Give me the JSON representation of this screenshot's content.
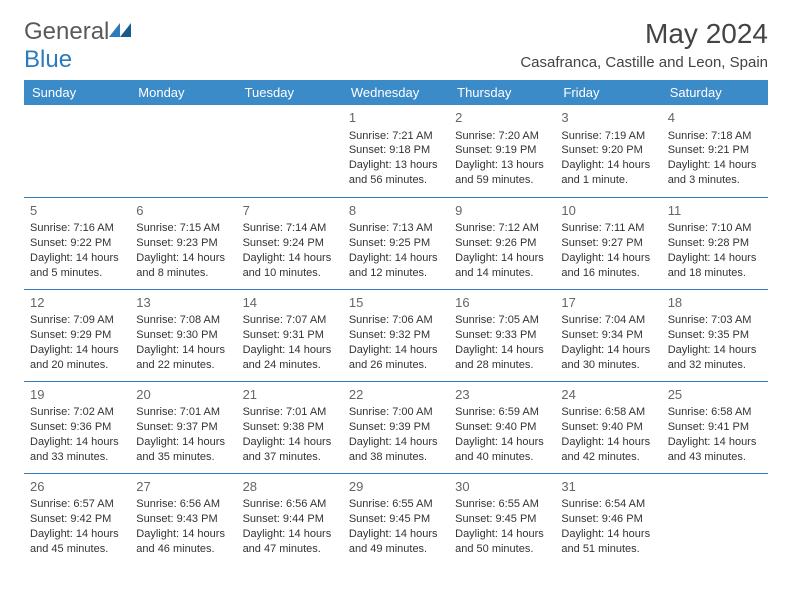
{
  "brand": {
    "name_part1": "General",
    "name_part2": "Blue",
    "accent_color": "#2b7bbd",
    "text_color": "#5a5a5a"
  },
  "title": "May 2024",
  "location": "Casafranca, Castille and Leon, Spain",
  "header_bg": "#3b8bc8",
  "header_fg": "#ffffff",
  "border_color": "#2b7bbd",
  "body_text_color": "#333333",
  "days": [
    "Sunday",
    "Monday",
    "Tuesday",
    "Wednesday",
    "Thursday",
    "Friday",
    "Saturday"
  ],
  "weeks": [
    [
      null,
      null,
      null,
      {
        "n": "1",
        "sr": "Sunrise: 7:21 AM",
        "ss": "Sunset: 9:18 PM",
        "dl": "Daylight: 13 hours and 56 minutes."
      },
      {
        "n": "2",
        "sr": "Sunrise: 7:20 AM",
        "ss": "Sunset: 9:19 PM",
        "dl": "Daylight: 13 hours and 59 minutes."
      },
      {
        "n": "3",
        "sr": "Sunrise: 7:19 AM",
        "ss": "Sunset: 9:20 PM",
        "dl": "Daylight: 14 hours and 1 minute."
      },
      {
        "n": "4",
        "sr": "Sunrise: 7:18 AM",
        "ss": "Sunset: 9:21 PM",
        "dl": "Daylight: 14 hours and 3 minutes."
      }
    ],
    [
      {
        "n": "5",
        "sr": "Sunrise: 7:16 AM",
        "ss": "Sunset: 9:22 PM",
        "dl": "Daylight: 14 hours and 5 minutes."
      },
      {
        "n": "6",
        "sr": "Sunrise: 7:15 AM",
        "ss": "Sunset: 9:23 PM",
        "dl": "Daylight: 14 hours and 8 minutes."
      },
      {
        "n": "7",
        "sr": "Sunrise: 7:14 AM",
        "ss": "Sunset: 9:24 PM",
        "dl": "Daylight: 14 hours and 10 minutes."
      },
      {
        "n": "8",
        "sr": "Sunrise: 7:13 AM",
        "ss": "Sunset: 9:25 PM",
        "dl": "Daylight: 14 hours and 12 minutes."
      },
      {
        "n": "9",
        "sr": "Sunrise: 7:12 AM",
        "ss": "Sunset: 9:26 PM",
        "dl": "Daylight: 14 hours and 14 minutes."
      },
      {
        "n": "10",
        "sr": "Sunrise: 7:11 AM",
        "ss": "Sunset: 9:27 PM",
        "dl": "Daylight: 14 hours and 16 minutes."
      },
      {
        "n": "11",
        "sr": "Sunrise: 7:10 AM",
        "ss": "Sunset: 9:28 PM",
        "dl": "Daylight: 14 hours and 18 minutes."
      }
    ],
    [
      {
        "n": "12",
        "sr": "Sunrise: 7:09 AM",
        "ss": "Sunset: 9:29 PM",
        "dl": "Daylight: 14 hours and 20 minutes."
      },
      {
        "n": "13",
        "sr": "Sunrise: 7:08 AM",
        "ss": "Sunset: 9:30 PM",
        "dl": "Daylight: 14 hours and 22 minutes."
      },
      {
        "n": "14",
        "sr": "Sunrise: 7:07 AM",
        "ss": "Sunset: 9:31 PM",
        "dl": "Daylight: 14 hours and 24 minutes."
      },
      {
        "n": "15",
        "sr": "Sunrise: 7:06 AM",
        "ss": "Sunset: 9:32 PM",
        "dl": "Daylight: 14 hours and 26 minutes."
      },
      {
        "n": "16",
        "sr": "Sunrise: 7:05 AM",
        "ss": "Sunset: 9:33 PM",
        "dl": "Daylight: 14 hours and 28 minutes."
      },
      {
        "n": "17",
        "sr": "Sunrise: 7:04 AM",
        "ss": "Sunset: 9:34 PM",
        "dl": "Daylight: 14 hours and 30 minutes."
      },
      {
        "n": "18",
        "sr": "Sunrise: 7:03 AM",
        "ss": "Sunset: 9:35 PM",
        "dl": "Daylight: 14 hours and 32 minutes."
      }
    ],
    [
      {
        "n": "19",
        "sr": "Sunrise: 7:02 AM",
        "ss": "Sunset: 9:36 PM",
        "dl": "Daylight: 14 hours and 33 minutes."
      },
      {
        "n": "20",
        "sr": "Sunrise: 7:01 AM",
        "ss": "Sunset: 9:37 PM",
        "dl": "Daylight: 14 hours and 35 minutes."
      },
      {
        "n": "21",
        "sr": "Sunrise: 7:01 AM",
        "ss": "Sunset: 9:38 PM",
        "dl": "Daylight: 14 hours and 37 minutes."
      },
      {
        "n": "22",
        "sr": "Sunrise: 7:00 AM",
        "ss": "Sunset: 9:39 PM",
        "dl": "Daylight: 14 hours and 38 minutes."
      },
      {
        "n": "23",
        "sr": "Sunrise: 6:59 AM",
        "ss": "Sunset: 9:40 PM",
        "dl": "Daylight: 14 hours and 40 minutes."
      },
      {
        "n": "24",
        "sr": "Sunrise: 6:58 AM",
        "ss": "Sunset: 9:40 PM",
        "dl": "Daylight: 14 hours and 42 minutes."
      },
      {
        "n": "25",
        "sr": "Sunrise: 6:58 AM",
        "ss": "Sunset: 9:41 PM",
        "dl": "Daylight: 14 hours and 43 minutes."
      }
    ],
    [
      {
        "n": "26",
        "sr": "Sunrise: 6:57 AM",
        "ss": "Sunset: 9:42 PM",
        "dl": "Daylight: 14 hours and 45 minutes."
      },
      {
        "n": "27",
        "sr": "Sunrise: 6:56 AM",
        "ss": "Sunset: 9:43 PM",
        "dl": "Daylight: 14 hours and 46 minutes."
      },
      {
        "n": "28",
        "sr": "Sunrise: 6:56 AM",
        "ss": "Sunset: 9:44 PM",
        "dl": "Daylight: 14 hours and 47 minutes."
      },
      {
        "n": "29",
        "sr": "Sunrise: 6:55 AM",
        "ss": "Sunset: 9:45 PM",
        "dl": "Daylight: 14 hours and 49 minutes."
      },
      {
        "n": "30",
        "sr": "Sunrise: 6:55 AM",
        "ss": "Sunset: 9:45 PM",
        "dl": "Daylight: 14 hours and 50 minutes."
      },
      {
        "n": "31",
        "sr": "Sunrise: 6:54 AM",
        "ss": "Sunset: 9:46 PM",
        "dl": "Daylight: 14 hours and 51 minutes."
      },
      null
    ]
  ]
}
